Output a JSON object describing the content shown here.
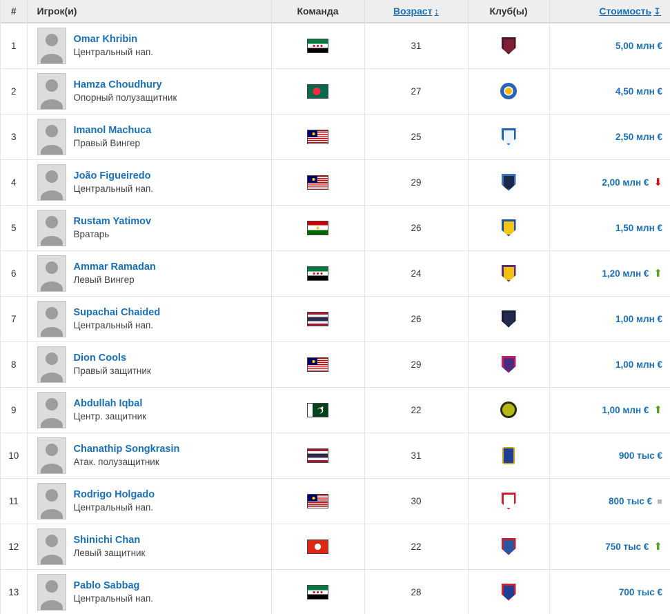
{
  "header": {
    "columns": [
      {
        "label": "#"
      },
      {
        "label": "Игрок(и)"
      },
      {
        "label": "Команда"
      },
      {
        "label": "Возраст",
        "sort_icon": "↨"
      },
      {
        "label": "Клуб(ы)"
      },
      {
        "label": "Стоимость",
        "sort_icon": "↧"
      }
    ]
  },
  "colors": {
    "link_blue": "#1a6fb5",
    "trend_up_green": "#5a9e1e",
    "trend_down_red": "#c81414",
    "trend_same_gray": "#bbbbbb",
    "header_bg": "#eeeeee"
  },
  "trend_glyphs": {
    "up": "⬆",
    "down": "⬇",
    "same": "■"
  },
  "rows": [
    {
      "rank": "1",
      "name": "Omar Khribin",
      "position": "Центральный нап.",
      "flag": "syria",
      "age": "31",
      "badge": {
        "shape": "shield",
        "c1": "#7b2036",
        "c2": "#521523"
      },
      "value": "5,00 млн €",
      "trend": "none"
    },
    {
      "rank": "2",
      "name": "Hamza Choudhury",
      "position": "Опорный полузащитник",
      "flag": "bangladesh",
      "age": "27",
      "badge": {
        "shape": "circle",
        "c1": "#2a63b8",
        "c2": "#f6be00"
      },
      "value": "4,50 млн €",
      "trend": "none"
    },
    {
      "rank": "3",
      "name": "Imanol Machuca",
      "position": "Правый Вингер",
      "flag": "malaysia",
      "age": "25",
      "badge": {
        "shape": "shield",
        "c1": "#eef3fa",
        "c2": "#1a5fb4"
      },
      "value": "2,50 млн €",
      "trend": "none"
    },
    {
      "rank": "4",
      "name": "João Figueiredo",
      "position": "Центральный нап.",
      "flag": "malaysia",
      "age": "29",
      "badge": {
        "shape": "shield",
        "c1": "#1b2a4a",
        "c2": "#3f6fb5"
      },
      "value": "2,00 млн €",
      "trend": "down"
    },
    {
      "rank": "5",
      "name": "Rustam Yatimov",
      "position": "Вратарь",
      "flag": "tajikistan",
      "age": "26",
      "badge": {
        "shape": "shield",
        "c1": "#f3c614",
        "c2": "#1e4f9c"
      },
      "value": "1,50 млн €",
      "trend": "none"
    },
    {
      "rank": "6",
      "name": "Ammar Ramadan",
      "position": "Левый Вингер",
      "flag": "syria",
      "age": "24",
      "badge": {
        "shape": "shield",
        "c1": "#f2c10f",
        "c2": "#5b2d7f"
      },
      "value": "1,20 млн €",
      "trend": "up"
    },
    {
      "rank": "7",
      "name": "Supachai Chaided",
      "position": "Центральный нап.",
      "flag": "thailand",
      "age": "26",
      "badge": {
        "shape": "shield",
        "c1": "#23284f",
        "c2": "#151a38"
      },
      "value": "1,00 млн €",
      "trend": "none"
    },
    {
      "rank": "8",
      "name": "Dion Cools",
      "position": "Правый защитник",
      "flag": "malaysia",
      "age": "29",
      "badge": {
        "shape": "shield",
        "c1": "#4b2d7f",
        "c2": "#c81e5b"
      },
      "value": "1,00 млн €",
      "trend": "none"
    },
    {
      "rank": "9",
      "name": "Abdullah Iqbal",
      "position": "Центр. защитник",
      "flag": "pakistan",
      "age": "22",
      "badge": {
        "shape": "round",
        "c1": "#b5b713",
        "c2": "#2a2a1a"
      },
      "value": "1,00 млн €",
      "trend": "up"
    },
    {
      "rank": "10",
      "name": "Chanathip Songkrasin",
      "position": "Атак. полузащитник",
      "flag": "thailand",
      "age": "31",
      "badge": {
        "shape": "rect",
        "c1": "#1d3f94",
        "c2": "#c9a227"
      },
      "value": "900 тыс €",
      "trend": "none"
    },
    {
      "rank": "11",
      "name": "Rodrigo Holgado",
      "position": "Центральный нап.",
      "flag": "malaysia",
      "age": "30",
      "badge": {
        "shape": "shield",
        "c1": "#ffffff",
        "c2": "#d02030"
      },
      "value": "800 тыс €",
      "trend": "same"
    },
    {
      "rank": "12",
      "name": "Shinichi Chan",
      "position": "Левый защитник",
      "flag": "hongkong",
      "age": "22",
      "badge": {
        "shape": "shield",
        "c1": "#2a57a5",
        "c2": "#c22233"
      },
      "value": "750 тыс €",
      "trend": "up"
    },
    {
      "rank": "13",
      "name": "Pablo Sabbag",
      "position": "Центральный нап.",
      "flag": "syria",
      "age": "28",
      "badge": {
        "shape": "shield",
        "c1": "#1d3f94",
        "c2": "#d02030"
      },
      "value": "700 тыс €",
      "trend": "none"
    }
  ]
}
